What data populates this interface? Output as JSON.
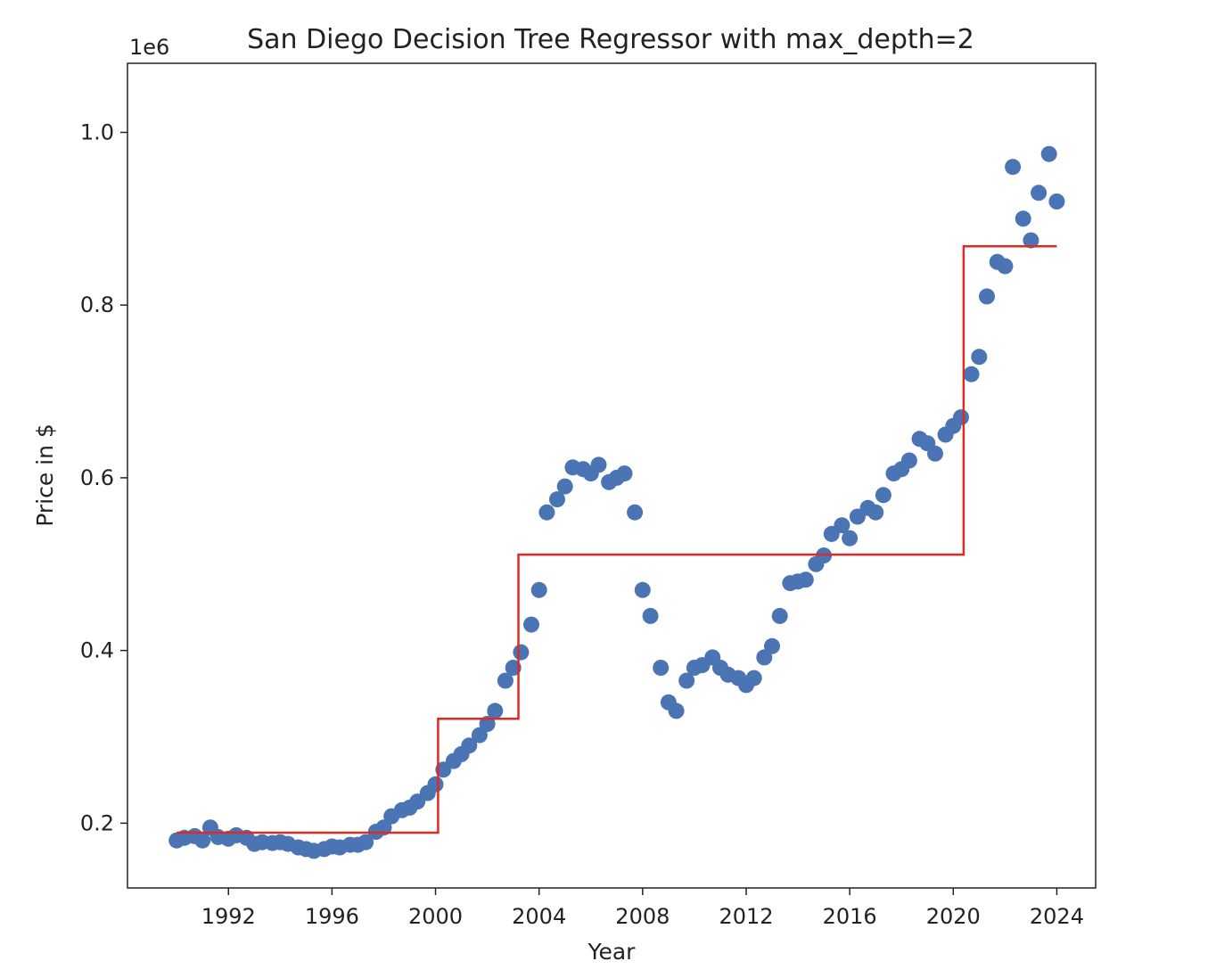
{
  "chart_data": {
    "type": "scatter",
    "title": "San Diego Decision Tree Regressor with max_depth=2",
    "xlabel": "Year",
    "ylabel": "Price in $",
    "y_offset_label": "1e6",
    "xlim": [
      1988.1,
      2025.5
    ],
    "ylim": [
      125000,
      1080000
    ],
    "x_ticks": [
      {
        "value": 1992,
        "label": "1992"
      },
      {
        "value": 1996,
        "label": "1996"
      },
      {
        "value": 2000,
        "label": "2000"
      },
      {
        "value": 2004,
        "label": "2004"
      },
      {
        "value": 2008,
        "label": "2008"
      },
      {
        "value": 2012,
        "label": "2012"
      },
      {
        "value": 2016,
        "label": "2016"
      },
      {
        "value": 2020,
        "label": "2020"
      },
      {
        "value": 2024,
        "label": "2024"
      }
    ],
    "y_ticks": [
      {
        "value": 200000,
        "label": "0.2"
      },
      {
        "value": 400000,
        "label": "0.4"
      },
      {
        "value": 600000,
        "label": "0.6"
      },
      {
        "value": 800000,
        "label": "0.8"
      },
      {
        "value": 1000000,
        "label": "1.0"
      }
    ],
    "grid": false,
    "colors": {
      "points": "#4a74b4",
      "prediction": "#dd2a22",
      "axes": "#222222"
    },
    "series": [
      {
        "kind": "scatter",
        "x": [
          1990.0,
          1990.3,
          1990.7,
          1991.0,
          1991.3,
          1991.6,
          1992.0,
          1992.3,
          1992.7,
          1993.0,
          1993.3,
          1993.7,
          1994.0,
          1994.3,
          1994.7,
          1995.0,
          1995.3,
          1995.7,
          1996.0,
          1996.3,
          1996.7,
          1997.0,
          1997.3,
          1997.7,
          1998.0,
          1998.3,
          1998.7,
          1999.0,
          1999.3,
          1999.7,
          2000.0,
          2000.3,
          2000.7,
          2001.0,
          2001.3,
          2001.7,
          2002.0,
          2002.3,
          2002.7,
          2003.0,
          2003.3,
          2003.7,
          2004.0,
          2004.3,
          2004.7,
          2005.0,
          2005.3,
          2005.7,
          2006.0,
          2006.3,
          2006.7,
          2007.0,
          2007.3,
          2007.7,
          2008.0,
          2008.3,
          2008.7,
          2009.0,
          2009.3,
          2009.7,
          2010.0,
          2010.3,
          2010.7,
          2011.0,
          2011.3,
          2011.7,
          2012.0,
          2012.3,
          2012.7,
          2013.0,
          2013.3,
          2013.7,
          2014.0,
          2014.3,
          2014.7,
          2015.0,
          2015.3,
          2015.7,
          2016.0,
          2016.3,
          2016.7,
          2017.0,
          2017.3,
          2017.7,
          2018.0,
          2018.3,
          2018.7,
          2019.0,
          2019.3,
          2019.7,
          2020.0,
          2020.3,
          2020.7,
          2021.0,
          2021.3,
          2021.7,
          2022.0,
          2022.3,
          2022.7,
          2023.0,
          2023.3,
          2023.7,
          2024.0
        ],
        "y": [
          180000,
          183000,
          185000,
          180000,
          195000,
          184000,
          182000,
          186000,
          183000,
          176000,
          178000,
          177000,
          178000,
          176000,
          172000,
          170000,
          168000,
          170000,
          173000,
          172000,
          175000,
          175000,
          178000,
          190000,
          195000,
          208000,
          215000,
          218000,
          225000,
          235000,
          245000,
          262000,
          272000,
          280000,
          290000,
          302000,
          315000,
          330000,
          365000,
          380000,
          398000,
          430000,
          470000,
          560000,
          575000,
          590000,
          612000,
          610000,
          605000,
          615000,
          595000,
          600000,
          605000,
          560000,
          470000,
          440000,
          380000,
          340000,
          330000,
          365000,
          380000,
          383000,
          392000,
          380000,
          372000,
          368000,
          360000,
          368000,
          392000,
          405000,
          440000,
          478000,
          480000,
          482000,
          500000,
          510000,
          535000,
          545000,
          530000,
          555000,
          565000,
          560000,
          580000,
          605000,
          610000,
          620000,
          645000,
          640000,
          628000,
          650000,
          660000,
          670000,
          720000,
          740000,
          810000,
          850000,
          845000,
          960000,
          900000,
          875000,
          930000,
          975000,
          920000
        ]
      },
      {
        "kind": "step",
        "x": [
          1990.0,
          2000.1,
          2000.1,
          2003.2,
          2003.2,
          2020.4,
          2020.4,
          2024.0
        ],
        "y": [
          189000,
          189000,
          321000,
          321000,
          511000,
          511000,
          868000,
          868000
        ]
      }
    ]
  }
}
